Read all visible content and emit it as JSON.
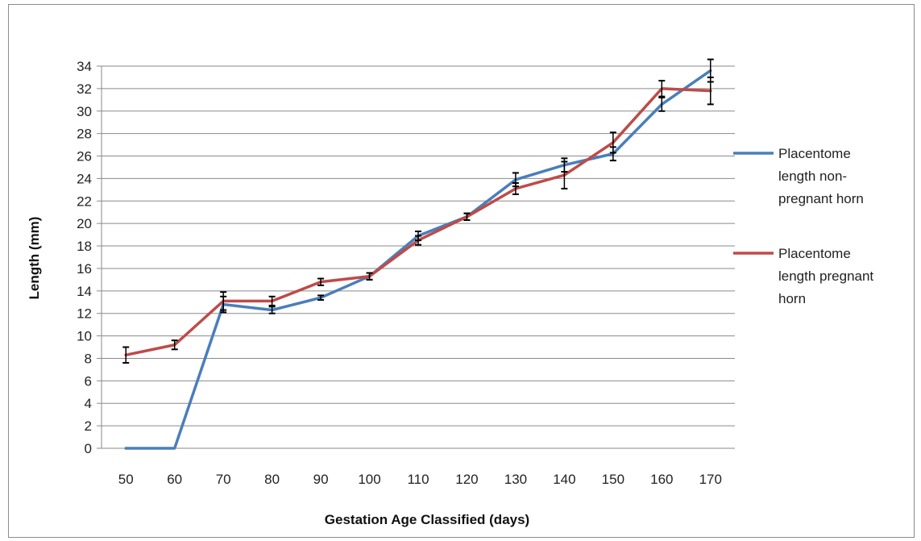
{
  "chart_data": {
    "type": "line",
    "title": "",
    "xlabel": "Gestation Age Classified (days)",
    "ylabel": "Length (mm)",
    "categories": [
      "50",
      "60",
      "70",
      "80",
      "90",
      "100",
      "110",
      "120",
      "130",
      "140",
      "150",
      "160",
      "170"
    ],
    "yticks": [
      "0",
      "2",
      "4",
      "6",
      "8",
      "10",
      "12",
      "14",
      "16",
      "18",
      "20",
      "22",
      "24",
      "26",
      "28",
      "30",
      "32",
      "34"
    ],
    "ylim": [
      0,
      35
    ],
    "grid": true,
    "legend_position": "right",
    "series": [
      {
        "name": "Placentome length non-pregnant horn",
        "legend_lines": [
          "Placentome",
          "length non-",
          "pregnant horn"
        ],
        "color": "#4a7ebb",
        "values": [
          0,
          0,
          12.8,
          12.3,
          13.4,
          15.3,
          18.9,
          20.6,
          23.9,
          25.2,
          26.2,
          30.6,
          33.6
        ],
        "error": [
          null,
          null,
          0.7,
          0.3,
          0.2,
          0.3,
          0.4,
          0.3,
          0.6,
          0.6,
          0.6,
          0.6,
          1.0
        ]
      },
      {
        "name": "Placentome length pregnant horn",
        "legend_lines": [
          "Placentome",
          "length pregnant",
          "horn"
        ],
        "color": "#be4b48",
        "values": [
          8.3,
          9.2,
          13.1,
          13.1,
          14.8,
          15.3,
          18.5,
          20.6,
          23.1,
          24.3,
          27.2,
          32.0,
          31.8
        ],
        "error": [
          0.7,
          0.4,
          0.8,
          0.4,
          0.3,
          0.3,
          0.4,
          0.3,
          0.5,
          1.2,
          0.9,
          0.7,
          1.2
        ]
      }
    ]
  }
}
